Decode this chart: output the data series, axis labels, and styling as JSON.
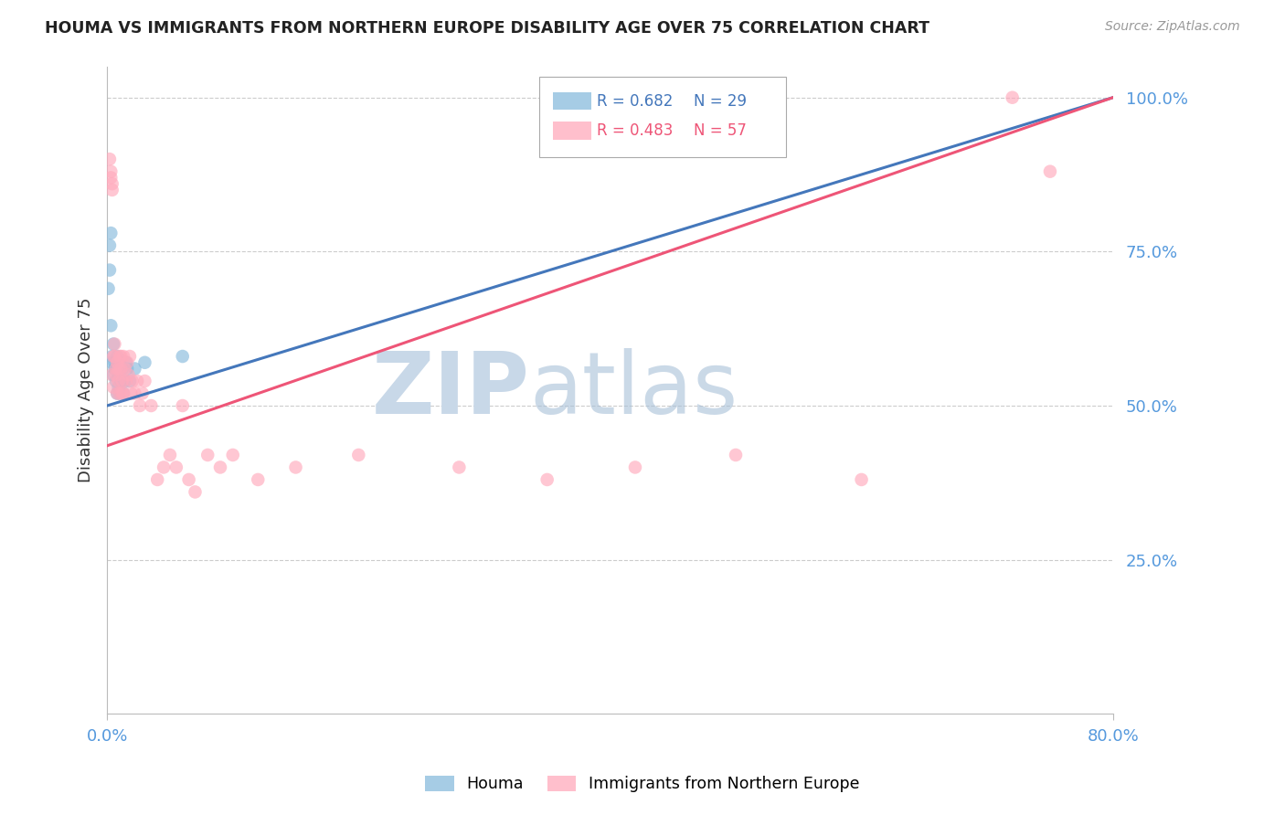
{
  "title": "HOUMA VS IMMIGRANTS FROM NORTHERN EUROPE DISABILITY AGE OVER 75 CORRELATION CHART",
  "source": "Source: ZipAtlas.com",
  "ylabel": "Disability Age Over 75",
  "legend_blue": {
    "R": "0.682",
    "N": "29",
    "label": "Houma"
  },
  "legend_pink": {
    "R": "0.483",
    "N": "57",
    "label": "Immigrants from Northern Europe"
  },
  "blue_color": "#88BBDD",
  "pink_color": "#FFAABC",
  "blue_line_color": "#4477BB",
  "pink_line_color": "#EE5577",
  "watermark_zip": "ZIP",
  "watermark_atlas": "atlas",
  "xlim": [
    0.0,
    0.8
  ],
  "ylim": [
    0.0,
    1.05
  ],
  "background_color": "#ffffff",
  "grid_color": "#cccccc",
  "blue_line_x0": 0.0,
  "blue_line_y0": 0.5,
  "blue_line_x1": 0.8,
  "blue_line_y1": 1.0,
  "pink_line_x0": 0.0,
  "pink_line_y0": 0.435,
  "pink_line_x1": 0.8,
  "pink_line_y1": 1.0,
  "houma_x": [
    0.001,
    0.002,
    0.002,
    0.003,
    0.003,
    0.004,
    0.004,
    0.005,
    0.005,
    0.006,
    0.006,
    0.007,
    0.007,
    0.008,
    0.008,
    0.009,
    0.009,
    0.01,
    0.01,
    0.011,
    0.012,
    0.013,
    0.014,
    0.015,
    0.016,
    0.018,
    0.022,
    0.03,
    0.06
  ],
  "houma_y": [
    0.69,
    0.72,
    0.76,
    0.63,
    0.78,
    0.58,
    0.57,
    0.6,
    0.55,
    0.57,
    0.56,
    0.54,
    0.56,
    0.58,
    0.52,
    0.55,
    0.53,
    0.57,
    0.52,
    0.54,
    0.56,
    0.52,
    0.54,
    0.57,
    0.56,
    0.54,
    0.56,
    0.57,
    0.58
  ],
  "immigrants_x": [
    0.002,
    0.003,
    0.003,
    0.004,
    0.004,
    0.004,
    0.005,
    0.005,
    0.006,
    0.006,
    0.007,
    0.007,
    0.008,
    0.008,
    0.009,
    0.009,
    0.01,
    0.01,
    0.011,
    0.011,
    0.012,
    0.012,
    0.013,
    0.013,
    0.014,
    0.015,
    0.016,
    0.017,
    0.018,
    0.019,
    0.02,
    0.022,
    0.024,
    0.026,
    0.028,
    0.03,
    0.035,
    0.04,
    0.045,
    0.05,
    0.055,
    0.06,
    0.065,
    0.07,
    0.08,
    0.09,
    0.1,
    0.12,
    0.15,
    0.2,
    0.28,
    0.35,
    0.42,
    0.5,
    0.6,
    0.72,
    0.75
  ],
  "immigrants_y": [
    0.9,
    0.88,
    0.87,
    0.86,
    0.85,
    0.55,
    0.53,
    0.58,
    0.6,
    0.58,
    0.56,
    0.55,
    0.57,
    0.52,
    0.56,
    0.54,
    0.58,
    0.52,
    0.58,
    0.56,
    0.52,
    0.54,
    0.58,
    0.52,
    0.56,
    0.54,
    0.57,
    0.55,
    0.58,
    0.52,
    0.54,
    0.52,
    0.54,
    0.5,
    0.52,
    0.54,
    0.5,
    0.38,
    0.4,
    0.42,
    0.4,
    0.5,
    0.38,
    0.36,
    0.42,
    0.4,
    0.42,
    0.38,
    0.4,
    0.42,
    0.4,
    0.38,
    0.4,
    0.42,
    0.38,
    1.0,
    0.88
  ]
}
